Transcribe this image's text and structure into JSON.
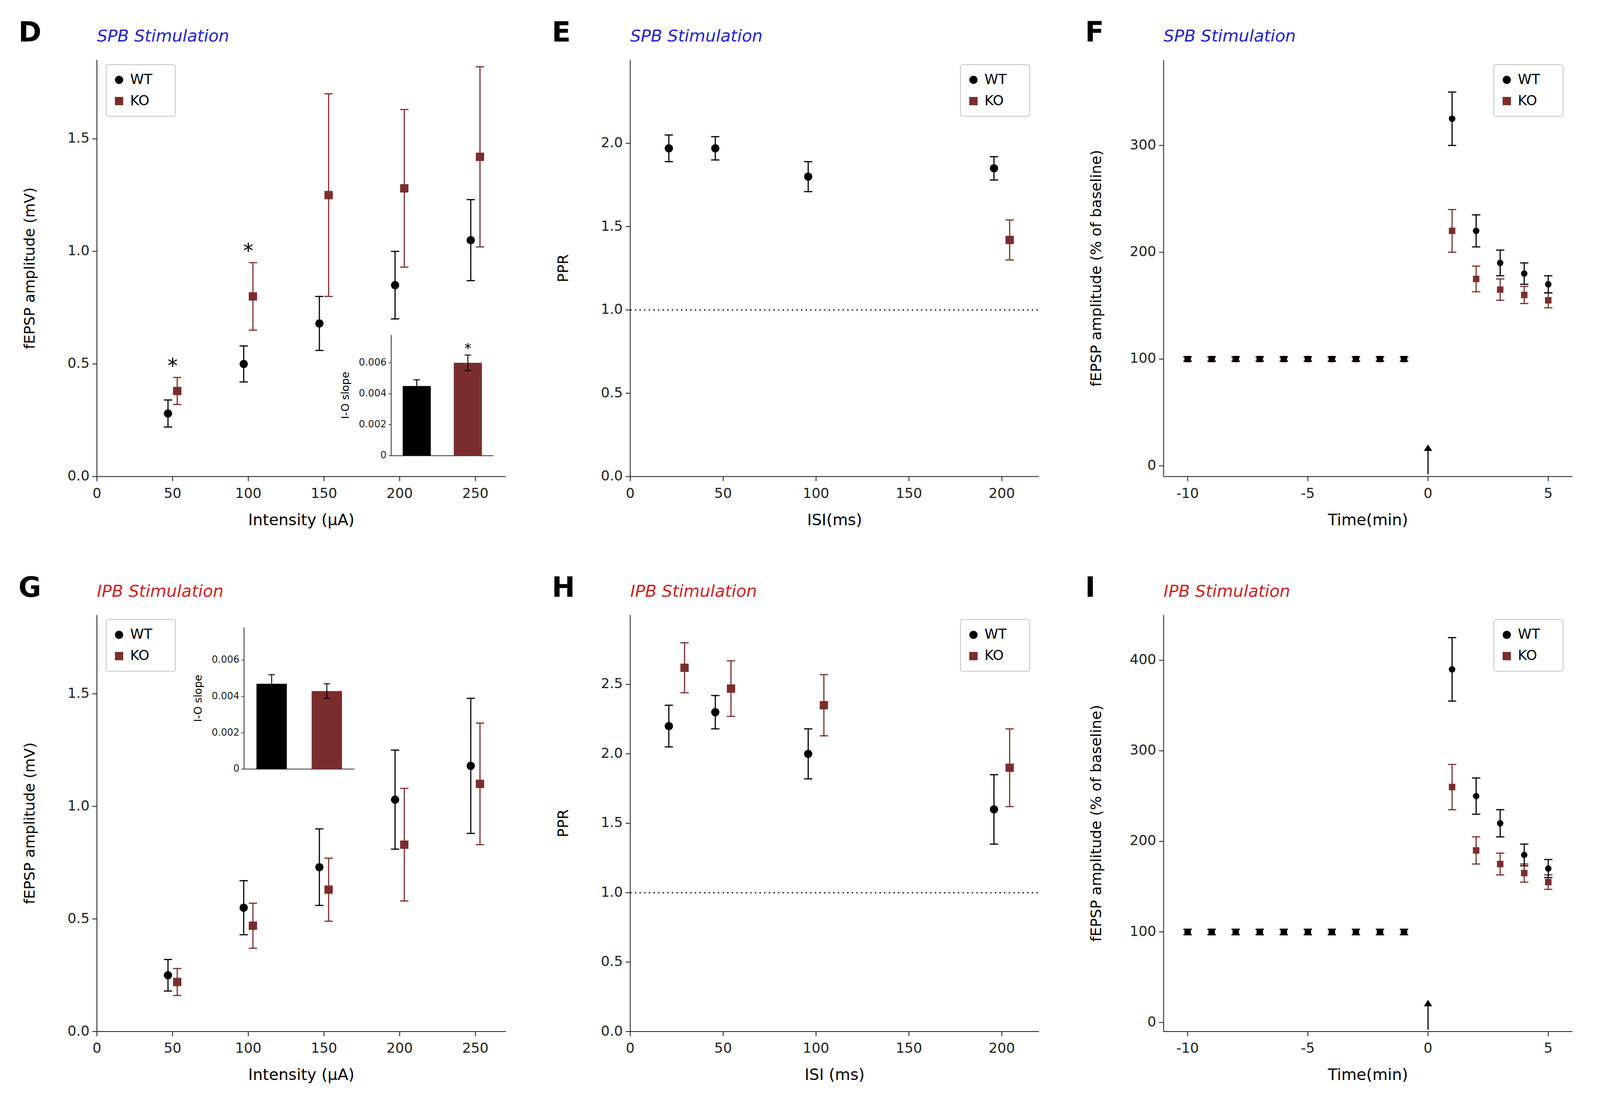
{
  "chart_data": [
    {
      "type": "scatter",
      "panel_label": "D",
      "title": "SPB Stimulation",
      "title_color": "#2222CC",
      "x_label": "Intensity (μA)",
      "y_label": "fEPSP amplitude (mV)",
      "xlim": [
        0,
        270
      ],
      "ylim": [
        0,
        1.85
      ],
      "xticks": [
        0,
        50,
        100,
        150,
        200,
        250
      ],
      "yticks": [
        {
          "value": 0,
          "label": "0.0"
        },
        0.5,
        {
          "value": 1.0,
          "label": "1.0"
        },
        1.5
      ],
      "grid": false,
      "legend": "upper left",
      "series": [
        {
          "name": "WT",
          "color": "#000000",
          "marker": "circle",
          "x": [
            50,
            100,
            150,
            200,
            250
          ],
          "values": [
            0.28,
            0.5,
            0.68,
            0.85,
            1.05
          ],
          "errors": [
            0.06,
            0.08,
            0.12,
            0.15,
            0.18
          ]
        },
        {
          "name": "KO",
          "color": "#7B2D2D",
          "marker": "square",
          "x": [
            50,
            100,
            150,
            200,
            250
          ],
          "values": [
            0.38,
            0.8,
            1.25,
            1.28,
            1.42
          ],
          "errors": [
            0.06,
            0.15,
            0.45,
            0.35,
            0.4
          ]
        }
      ],
      "annotations": [
        {
          "text": "*",
          "x": 50
        },
        {
          "text": "*",
          "x": 100
        }
      ],
      "inset": {
        "type": "bar",
        "y_label": "I-O slope",
        "ylim": [
          0,
          0.0078
        ],
        "yticks": [
          0,
          0.002,
          0.004,
          0.006
        ],
        "values": [
          0.0045,
          0.006
        ],
        "errors": [
          0.0004,
          0.0005
        ],
        "colors": [
          "#000000",
          "#7B2D2D"
        ],
        "annotations": [
          {
            "text": "*",
            "index": 1
          }
        ]
      }
    },
    {
      "type": "scatter",
      "panel_label": "E",
      "title": "SPB Stimulation",
      "title_color": "#2222CC",
      "x_label": "ISI(ms)",
      "y_label": "PPR",
      "xlim": [
        0,
        220
      ],
      "ylim": [
        0,
        2.5
      ],
      "xticks": [
        0,
        50,
        100,
        150,
        200
      ],
      "yticks": [
        {
          "value": 0,
          "label": "0.0"
        },
        0.5,
        {
          "value": 1.0,
          "label": "1.0"
        },
        1.5,
        {
          "value": 2.0,
          "label": "2.0"
        }
      ],
      "grid": false,
      "legend": "upper right",
      "reference_y": 1.0,
      "series": [
        {
          "name": "WT",
          "color": "#000000",
          "marker": "circle",
          "x": [
            25,
            50,
            100,
            200
          ],
          "values": [
            1.97,
            1.97,
            1.8,
            1.85
          ],
          "errors": [
            0.08,
            0.07,
            0.09,
            0.07
          ]
        },
        {
          "name": "KO",
          "color": "#7B2D2D",
          "marker": "square",
          "x": [
            200
          ],
          "values": [
            1.42
          ],
          "errors": [
            0.12
          ]
        }
      ]
    },
    {
      "type": "scatter",
      "panel_label": "F",
      "title": "SPB Stimulation",
      "title_color": "#2222CC",
      "x_label": "Time(min)",
      "y_label": "fEPSP amplitude (% of baseline)",
      "xlim": [
        -11,
        6
      ],
      "ylim": [
        -10,
        380
      ],
      "xticks": [
        -10,
        -5,
        0,
        5
      ],
      "yticks": [
        0,
        100,
        200,
        300
      ],
      "grid": false,
      "legend": "upper right",
      "arrow": {
        "x": 0,
        "y_start": -8,
        "y_end": 20
      },
      "series": [
        {
          "name": "WT",
          "color": "#000000",
          "marker": "circle",
          "x": [
            -10,
            -9,
            -8,
            -7,
            -6,
            -5,
            -4,
            -3,
            -2,
            -1,
            1,
            2,
            3,
            4,
            5
          ],
          "values": [
            100,
            100,
            100,
            100,
            100,
            100,
            100,
            100,
            100,
            100,
            325,
            220,
            190,
            180,
            170
          ],
          "errors": [
            2,
            2,
            2,
            2,
            2,
            2,
            2,
            2,
            2,
            2,
            25,
            15,
            12,
            10,
            8
          ]
        },
        {
          "name": "KO",
          "color": "#7B2D2D",
          "marker": "square",
          "x": [
            -10,
            -9,
            -8,
            -7,
            -6,
            -5,
            -4,
            -3,
            -2,
            -1,
            1,
            2,
            3,
            4,
            5
          ],
          "values": [
            100,
            100,
            100,
            100,
            100,
            100,
            100,
            100,
            100,
            100,
            220,
            175,
            165,
            160,
            155
          ],
          "errors": [
            2,
            2,
            2,
            2,
            2,
            2,
            2,
            2,
            2,
            2,
            20,
            12,
            10,
            8,
            7
          ]
        }
      ]
    },
    {
      "type": "scatter",
      "panel_label": "G",
      "title": "IPB Stimulation",
      "title_color": "#CC2222",
      "x_label": "Intensity (μA)",
      "y_label": "fEPSP amplitude (mV)",
      "xlim": [
        0,
        270
      ],
      "ylim": [
        0,
        1.85
      ],
      "xticks": [
        0,
        50,
        100,
        150,
        200,
        250
      ],
      "yticks": [
        {
          "value": 0,
          "label": "0.0"
        },
        0.5,
        {
          "value": 1.0,
          "label": "1.0"
        },
        1.5
      ],
      "grid": false,
      "legend": "upper left",
      "series": [
        {
          "name": "WT",
          "color": "#000000",
          "marker": "circle",
          "x": [
            50,
            100,
            150,
            200,
            250
          ],
          "values": [
            0.25,
            0.55,
            0.73,
            1.03,
            1.18
          ],
          "errors": [
            0.07,
            0.12,
            0.17,
            0.22,
            0.3
          ]
        },
        {
          "name": "KO",
          "color": "#7B2D2D",
          "marker": "square",
          "x": [
            50,
            100,
            150,
            200,
            250
          ],
          "values": [
            0.22,
            0.47,
            0.63,
            0.83,
            1.1
          ],
          "errors": [
            0.06,
            0.1,
            0.14,
            0.25,
            0.27
          ]
        }
      ],
      "inset": {
        "type": "bar",
        "y_label": "I-O slope",
        "ylim": [
          0,
          0.0078
        ],
        "yticks": [
          0,
          0.002,
          0.004,
          0.006
        ],
        "values": [
          0.0047,
          0.0043
        ],
        "errors": [
          0.0005,
          0.0004
        ],
        "colors": [
          "#000000",
          "#7B2D2D"
        ]
      }
    },
    {
      "type": "scatter",
      "panel_label": "H",
      "title": "IPB Stimulation",
      "title_color": "#CC2222",
      "x_label": "ISI (ms)",
      "y_label": "PPR",
      "xlim": [
        0,
        220
      ],
      "ylim": [
        0,
        3.0
      ],
      "xticks": [
        0,
        50,
        100,
        150,
        200
      ],
      "yticks": [
        {
          "value": 0,
          "label": "0.0"
        },
        0.5,
        {
          "value": 1.0,
          "label": "1.0"
        },
        1.5,
        {
          "value": 2.0,
          "label": "2.0"
        },
        2.5
      ],
      "grid": false,
      "legend": "upper right",
      "reference_y": 1.0,
      "series": [
        {
          "name": "WT",
          "color": "#000000",
          "marker": "circle",
          "x": [
            25,
            50,
            100,
            200
          ],
          "values": [
            2.2,
            2.3,
            2.0,
            1.6
          ],
          "errors": [
            0.15,
            0.12,
            0.18,
            0.25
          ]
        },
        {
          "name": "KO",
          "color": "#7B2D2D",
          "marker": "square",
          "x": [
            25,
            50,
            100,
            200
          ],
          "values": [
            2.62,
            2.47,
            2.35,
            1.9
          ],
          "errors": [
            0.18,
            0.2,
            0.22,
            0.28
          ]
        }
      ]
    },
    {
      "type": "scatter",
      "panel_label": "I",
      "title": "IPB Stimulation",
      "title_color": "#CC2222",
      "x_label": "Time(min)",
      "y_label": "fEPSP amplitude (% of baseline)",
      "xlim": [
        -11,
        6
      ],
      "ylim": [
        -10,
        450
      ],
      "xticks": [
        -10,
        -5,
        0,
        5
      ],
      "yticks": [
        0,
        100,
        200,
        300,
        400
      ],
      "grid": false,
      "legend": "upper right",
      "arrow": {
        "x": 0,
        "y_start": -8,
        "y_end": 25
      },
      "series": [
        {
          "name": "WT",
          "color": "#000000",
          "marker": "circle",
          "x": [
            -10,
            -9,
            -8,
            -7,
            -6,
            -5,
            -4,
            -3,
            -2,
            -1,
            1,
            2,
            3,
            4,
            5
          ],
          "values": [
            100,
            100,
            100,
            100,
            100,
            100,
            100,
            100,
            100,
            100,
            390,
            250,
            220,
            185,
            170
          ],
          "errors": [
            3,
            3,
            3,
            3,
            3,
            3,
            3,
            3,
            3,
            3,
            35,
            20,
            15,
            12,
            10
          ]
        },
        {
          "name": "KO",
          "color": "#7B2D2D",
          "marker": "square",
          "x": [
            -10,
            -9,
            -8,
            -7,
            -6,
            -5,
            -4,
            -3,
            -2,
            -1,
            1,
            2,
            3,
            4,
            5
          ],
          "values": [
            100,
            100,
            100,
            100,
            100,
            100,
            100,
            100,
            100,
            100,
            260,
            190,
            175,
            165,
            155
          ],
          "errors": [
            3,
            3,
            3,
            3,
            3,
            3,
            3,
            3,
            3,
            3,
            25,
            15,
            12,
            10,
            8
          ]
        }
      ]
    }
  ]
}
